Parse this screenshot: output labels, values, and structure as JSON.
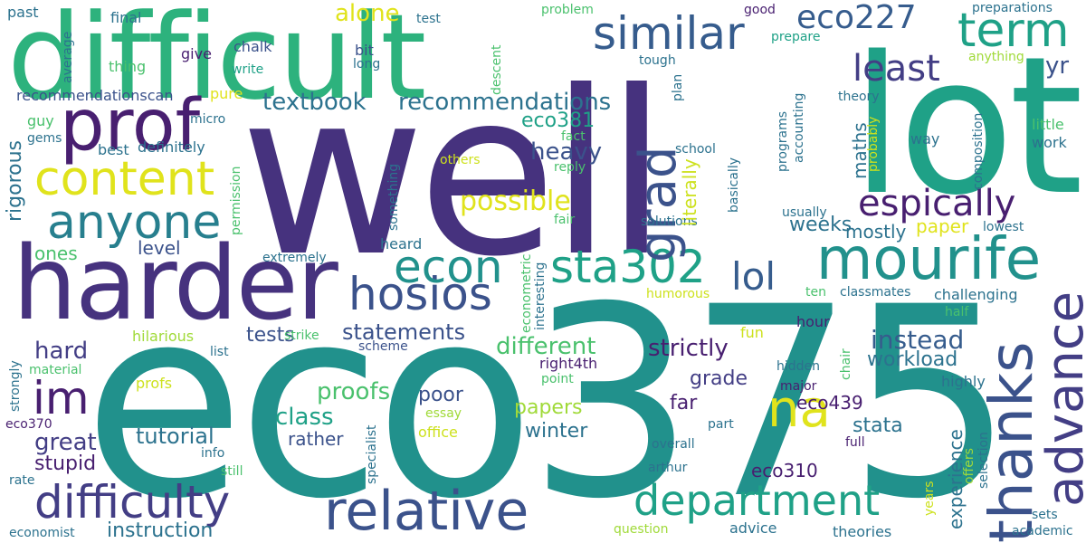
{
  "palette": {
    "indigo": "#46327e",
    "purple": "#481f70",
    "blue": "#365c8d",
    "steel": "#3b528b",
    "teal": "#277f8e",
    "cyan": "#21918c",
    "aqua": "#1fa187",
    "green": "#2db27d",
    "lime": "#4ac16d",
    "leaf": "#74d055",
    "yellowgreen": "#a0da39",
    "yellow": "#cde11d",
    "gold": "#e0e31c",
    "darkblue": "#2c728e",
    "navy": "#433e85"
  },
  "words": {
    "eco375": "eco375",
    "well": "well",
    "lot": "lot",
    "difficult": "difficult",
    "harder": "harder",
    "prof": "prof",
    "content": "content",
    "anyone": "anyone",
    "grad": "grad",
    "similar": "similar",
    "eco227": "eco227",
    "term": "term",
    "least": "least",
    "yr": "yr",
    "mourife": "mourife",
    "thanks": "thanks",
    "advance": "advance",
    "espically": "espically",
    "department": "department",
    "relative": "relative",
    "difficulty": "difficulty",
    "hosios": "hosios",
    "econ": "econ",
    "sta302": "sta302",
    "lol": "lol",
    "na": "na",
    "im": "im",
    "textbook": "textbook",
    "recommendations": "recommendations",
    "recommendationscan": "recommendationscan",
    "eco381": "eco381",
    "heavy": "heavy",
    "possible": "possible",
    "literally": "literally",
    "maths": "maths",
    "weeks": "weeks",
    "paper": "paper",
    "mostly": "mostly",
    "instead": "instead",
    "workload": "workload",
    "grade": "grade",
    "far": "far",
    "eco439": "eco439",
    "stata": "stata",
    "experience": "experience",
    "winter": "winter",
    "papers": "papers",
    "poor": "poor",
    "proofs": "proofs",
    "different": "different",
    "strictly": "strictly",
    "statements": "statements",
    "tests": "tests",
    "hard": "hard",
    "great": "great",
    "class": "class",
    "tutorial": "tutorial",
    "rather": "rather",
    "stupid": "stupid",
    "instruction": "instruction",
    "eco310": "eco310",
    "ones": "ones",
    "level": "level",
    "rigorous": "rigorous",
    "guy": "guy",
    "gems": "gems",
    "best": "best",
    "definitely": "definitely",
    "micro": "micro",
    "pure": "pure",
    "alone": "alone",
    "final": "final",
    "past": "past",
    "average": "average",
    "thing": "thing",
    "give": "give",
    "chalk": "chalk",
    "write": "write",
    "bit": "bit",
    "long": "long",
    "test": "test",
    "descent": "descent",
    "problem": "problem",
    "good": "good",
    "prepare": "prepare",
    "preparations": "preparations",
    "anything": "anything",
    "tough": "tough",
    "plan": "plan",
    "theory": "theory",
    "accounting": "accounting",
    "programs": "programs",
    "basically": "basically",
    "school": "school",
    "fact": "fact",
    "reply": "reply",
    "others": "others",
    "something": "something",
    "permission": "permission",
    "fair": "fair",
    "solutions": "solutions",
    "usually": "usually",
    "probably": "probably",
    "composition": "composition",
    "little": "little",
    "work": "work",
    "way": "way",
    "lowest": "lowest",
    "heard": "heard",
    "extremely": "extremely",
    "econometric": "econometric",
    "interesting": "interesting",
    "humorous": "humorous",
    "ten": "ten",
    "classmates": "classmates",
    "challenging": "challenging",
    "half": "half",
    "hour": "hour",
    "fun": "fun",
    "chair": "chair",
    "hidden": "hidden",
    "right4th": "right4th",
    "point": "point",
    "major": "major",
    "highly": "highly",
    "hilarious": "hilarious",
    "strike": "strike",
    "scheme": "scheme",
    "list": "list",
    "material": "material",
    "strongly": "strongly",
    "profs": "profs",
    "eco370": "eco370",
    "rate": "rate",
    "info": "info",
    "still": "still",
    "specialist": "specialist",
    "essay": "essay",
    "office": "office",
    "part": "part",
    "overall": "overall",
    "full": "full",
    "arthur": "arthur",
    "selection": "selection",
    "offers": "offers",
    "years": "years",
    "sets": "sets",
    "academic": "academic",
    "theories": "theories",
    "advice": "advice",
    "question": "question",
    "economist": "economist"
  }
}
